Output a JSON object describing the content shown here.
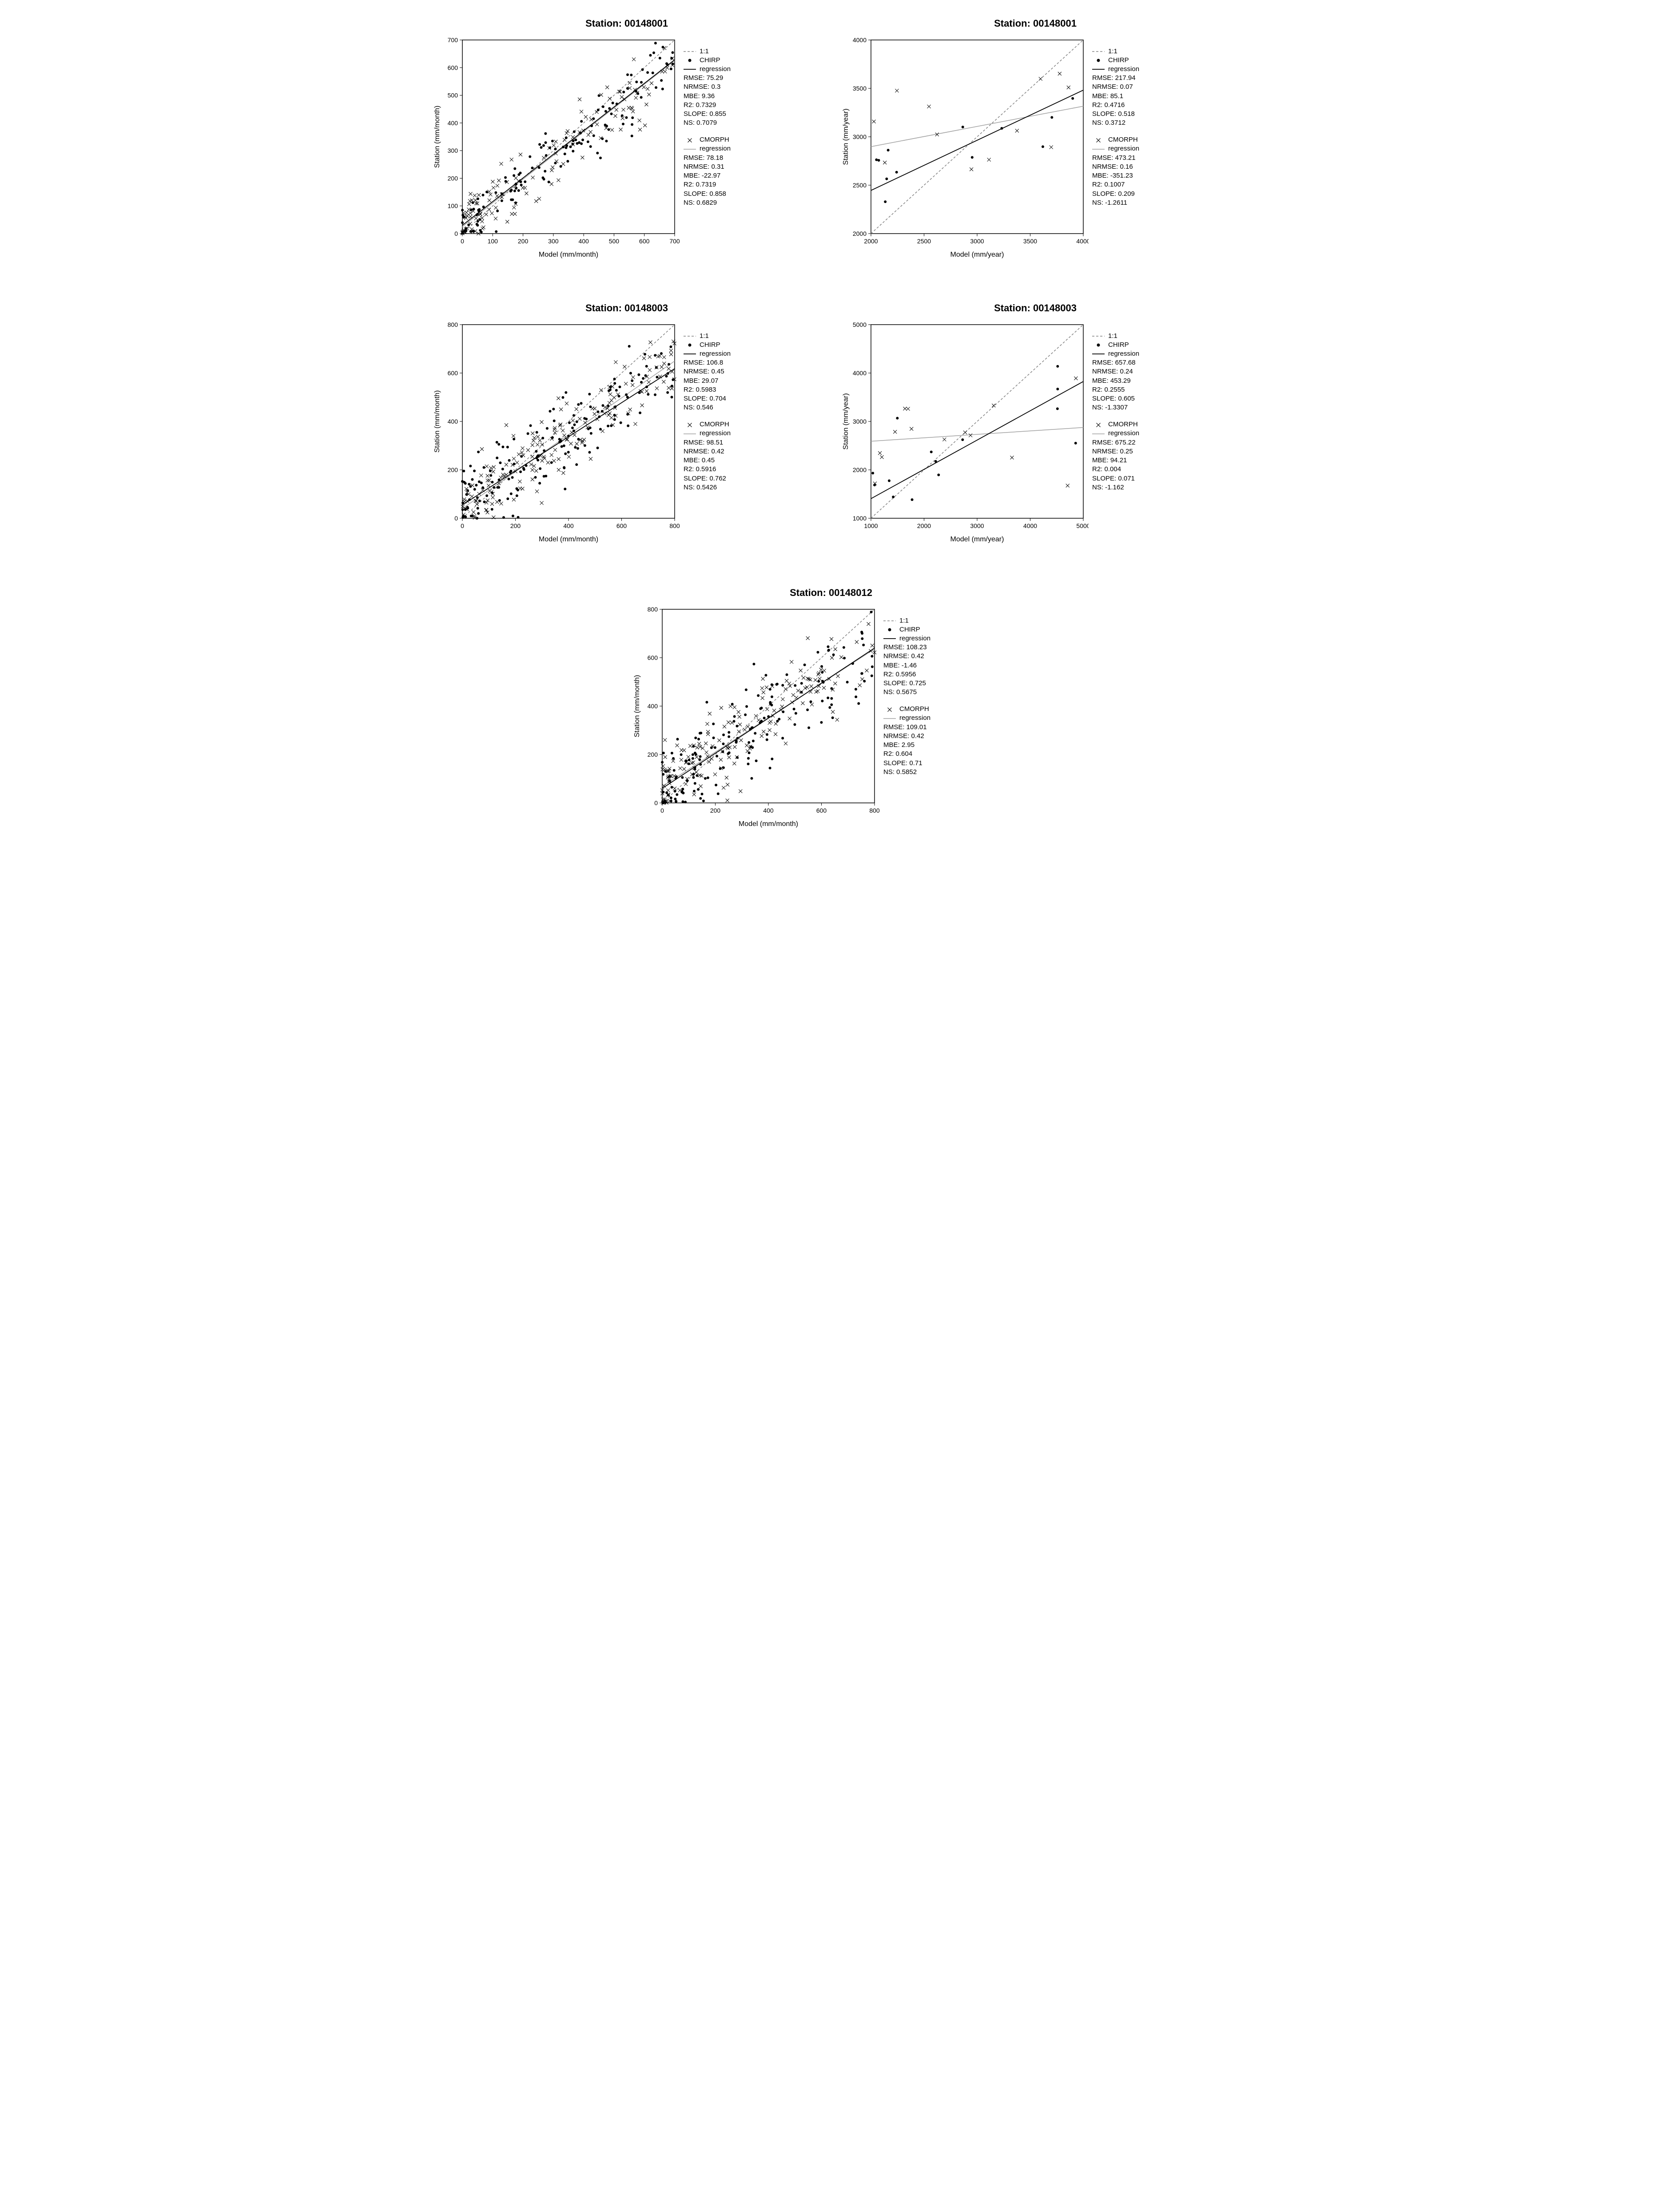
{
  "layout": {
    "cols": 2,
    "background_color": "#ffffff",
    "text_color": "#000000",
    "title_fontsize": 22,
    "label_fontsize": 16,
    "tick_fontsize": 14,
    "legend_fontsize": 15
  },
  "colors": {
    "axis": "#000000",
    "one_to_one": "#808080",
    "chirp_reg": "#000000",
    "cmorph_reg": "#a0a0a0",
    "chirp_marker": "#000000",
    "cmorph_marker": "#000000"
  },
  "markers": {
    "chirp": {
      "type": "dot",
      "size": 3.0,
      "fill": "#000000"
    },
    "cmorph": {
      "type": "x",
      "size": 4.0,
      "stroke": "#000000",
      "linewidth": 1.0
    }
  },
  "lines": {
    "one_to_one": {
      "stroke": "#808080",
      "dash": "5,4",
      "width": 1.5
    },
    "chirp_reg": {
      "stroke": "#000000",
      "dash": "none",
      "width": 1.8
    },
    "cmorph_reg": {
      "stroke": "#a0a0a0",
      "dash": "none",
      "width": 1.5
    }
  },
  "legend_keys": {
    "one_to_one": "1:1",
    "chirp_label": "CHIRP",
    "cmorph_label": "CMORPH",
    "regression": "regression"
  },
  "stat_labels": {
    "RMSE": "RMSE",
    "NRMSE": "NRMSE",
    "MBE": "MBE",
    "R2": "R2",
    "SLOPE": "SLOPE",
    "NS": "NS"
  },
  "panels": [
    {
      "id": "p1",
      "title": "Station: 00148001",
      "xlabel": "Model (mm/month)",
      "ylabel": "Station (mm/month)",
      "xlim": [
        0,
        700
      ],
      "ylim": [
        0,
        700
      ],
      "xticks": [
        0,
        100,
        200,
        300,
        400,
        500,
        600,
        700
      ],
      "yticks": [
        0,
        100,
        200,
        300,
        400,
        500,
        600,
        700
      ],
      "n_chirp": 140,
      "n_cmorph": 140,
      "chirp_reg": {
        "intercept": 30,
        "slope": 0.855
      },
      "cmorph_reg": {
        "intercept": 25,
        "slope": 0.858
      },
      "chirp_stats": {
        "RMSE": "75.29",
        "NRMSE": "0.3",
        "MBE": "9.36",
        "R2": "0.7329",
        "SLOPE": "0.855",
        "NS": "0.7079"
      },
      "cmorph_stats": {
        "RMSE": "78.18",
        "NRMSE": "0.31",
        "MBE": "-22.97",
        "R2": "0.7319",
        "SLOPE": "0.858",
        "NS": "0.6829"
      },
      "noise_sd": 60
    },
    {
      "id": "p2",
      "title": "Station: 00148001",
      "xlabel": "Model (mm/year)",
      "ylabel": "Station (mm/year)",
      "xlim": [
        2000,
        4000
      ],
      "ylim": [
        2000,
        4000
      ],
      "xticks": [
        2000,
        2500,
        3000,
        3500,
        4000
      ],
      "yticks": [
        2000,
        2500,
        3000,
        3500,
        4000
      ],
      "n_chirp": 12,
      "n_cmorph": 12,
      "chirp_reg": {
        "intercept": 1410,
        "slope": 0.518
      },
      "cmorph_reg": {
        "intercept": 2480,
        "slope": 0.209
      },
      "chirp_stats": {
        "RMSE": "217.94",
        "NRMSE": "0.07",
        "MBE": "85.1",
        "R2": "0.4716",
        "SLOPE": "0.518",
        "NS": "0.3712"
      },
      "cmorph_stats": {
        "RMSE": "473.21",
        "NRMSE": "0.16",
        "MBE": "-351.23",
        "R2": "0.1007",
        "SLOPE": "0.209",
        "NS": "-1.2611"
      },
      "noise_sd": 300
    },
    {
      "id": "p3",
      "title": "Station: 00148003",
      "xlabel": "Model (mm/month)",
      "ylabel": "Station (mm/month)",
      "xlim": [
        0,
        800
      ],
      "ylim": [
        0,
        800
      ],
      "xticks": [
        0,
        200,
        400,
        600,
        800
      ],
      "yticks": [
        0,
        200,
        400,
        600,
        800
      ],
      "n_chirp": 180,
      "n_cmorph": 180,
      "chirp_reg": {
        "intercept": 55,
        "slope": 0.704
      },
      "cmorph_reg": {
        "intercept": 40,
        "slope": 0.762
      },
      "chirp_stats": {
        "RMSE": "106.8",
        "NRMSE": "0.45",
        "MBE": "29.07",
        "R2": "0.5983",
        "SLOPE": "0.704",
        "NS": "0.546"
      },
      "cmorph_stats": {
        "RMSE": "98.51",
        "NRMSE": "0.42",
        "MBE": "0.45",
        "R2": "0.5916",
        "SLOPE": "0.762",
        "NS": "0.5426"
      },
      "noise_sd": 80
    },
    {
      "id": "p4",
      "title": "Station: 00148003",
      "xlabel": "Model (mm/year)",
      "ylabel": "Station (mm/year)",
      "xlim": [
        1000,
        5000
      ],
      "ylim": [
        1000,
        5000
      ],
      "xticks": [
        1000,
        2000,
        3000,
        4000,
        5000
      ],
      "yticks": [
        1000,
        2000,
        3000,
        4000,
        5000
      ],
      "n_chirp": 14,
      "n_cmorph": 14,
      "chirp_reg": {
        "intercept": 800,
        "slope": 0.605
      },
      "cmorph_reg": {
        "intercept": 2520,
        "slope": 0.071
      },
      "chirp_stats": {
        "RMSE": "657.68",
        "NRMSE": "0.24",
        "MBE": "453.29",
        "R2": "0.2555",
        "SLOPE": "0.605",
        "NS": "-1.3307"
      },
      "cmorph_stats": {
        "RMSE": "675.22",
        "NRMSE": "0.25",
        "MBE": "94.21",
        "R2": "0.004",
        "SLOPE": "0.071",
        "NS": "-1.162"
      },
      "noise_sd": 600
    },
    {
      "id": "p5",
      "title": "Station: 00148012",
      "xlabel": "Model (mm/month)",
      "ylabel": "Station (mm/month)",
      "xlim": [
        0,
        800
      ],
      "ylim": [
        0,
        800
      ],
      "xticks": [
        0,
        200,
        400,
        600,
        800
      ],
      "yticks": [
        0,
        200,
        400,
        600,
        800
      ],
      "n_chirp": 180,
      "n_cmorph": 180,
      "chirp_reg": {
        "intercept": 60,
        "slope": 0.725
      },
      "cmorph_reg": {
        "intercept": 68,
        "slope": 0.71
      },
      "chirp_stats": {
        "RMSE": "108.23",
        "NRMSE": "0.42",
        "MBE": "-1.46",
        "R2": "0.5956",
        "SLOPE": "0.725",
        "NS": "0.5675"
      },
      "cmorph_stats": {
        "RMSE": "109.01",
        "NRMSE": "0.42",
        "MBE": "2.95",
        "R2": "0.604",
        "SLOPE": "0.71",
        "NS": "0.5852"
      },
      "noise_sd": 90,
      "span2": true
    }
  ]
}
